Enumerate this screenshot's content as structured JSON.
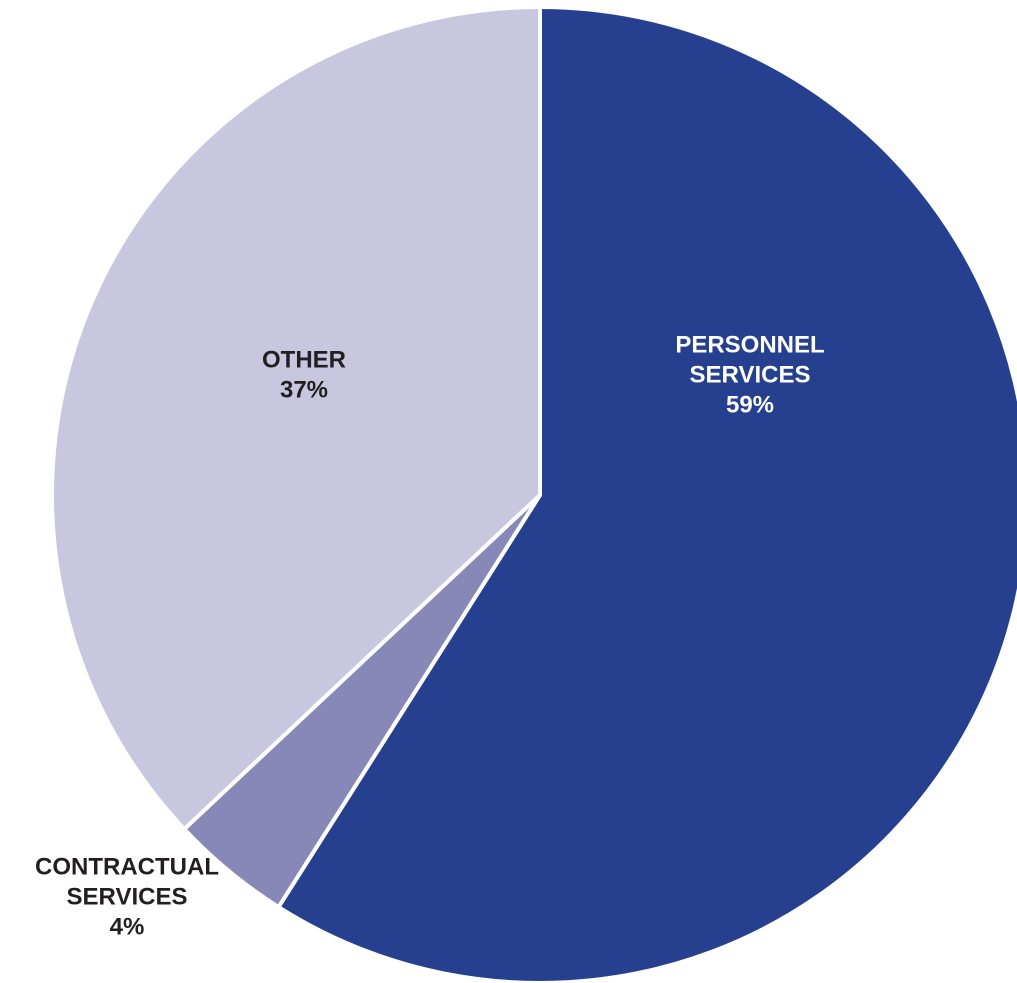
{
  "chart_data": {
    "type": "pie",
    "slices": [
      {
        "label_lines": [
          "PERSONNEL",
          "SERVICES"
        ],
        "value": 59,
        "value_label": "59%",
        "color": "#263f8e",
        "label_color": "#ffffff"
      },
      {
        "label_lines": [
          "CONTRACTUAL",
          "SERVICES"
        ],
        "value": 4,
        "value_label": "4%",
        "color": "#8788b8",
        "label_color": "#231f20"
      },
      {
        "label_lines": [
          "OTHER"
        ],
        "value": 37,
        "value_label": "37%",
        "color": "#c7c8e0",
        "label_color": "#231f20"
      }
    ],
    "start": "12 o'clock",
    "direction": "clockwise",
    "slice_border_color": "#ffffff"
  }
}
